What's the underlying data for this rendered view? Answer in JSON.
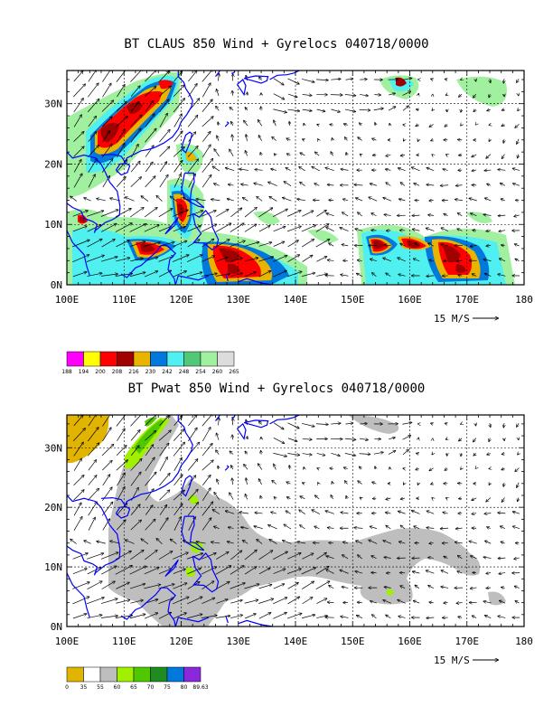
{
  "panels": [
    {
      "title": "BT CLAUS 850 Wind + Gyrelocs 040718/0000",
      "lon_ticks": [
        "100E",
        "110E",
        "120E",
        "130E",
        "140E",
        "150E",
        "160E",
        "170E",
        "180"
      ],
      "lat_ticks": [
        "0N",
        "10N",
        "20N",
        "30N"
      ],
      "scale_label": "15 M/S",
      "legend": {
        "colors": [
          "#ff00ff",
          "#ffff00",
          "#ff0000",
          "#a00000",
          "#e8b400",
          "#0078dc",
          "#50f0f0",
          "#50c878",
          "#a0f0a0",
          "#dcdcdc"
        ],
        "labels": [
          "188",
          "194",
          "200",
          "208",
          "216",
          "230",
          "242",
          "248",
          "254",
          "260",
          "265"
        ]
      }
    },
    {
      "title": "BT Pwat 850 Wind + Gyrelocs 040718/0000",
      "lon_ticks": [
        "100E",
        "110E",
        "120E",
        "130E",
        "140E",
        "150E",
        "160E",
        "170E",
        "180"
      ],
      "lat_ticks": [
        "0N",
        "10N",
        "20N",
        "30N"
      ],
      "scale_label": "15 M/S",
      "legend": {
        "colors": [
          "#e0b400",
          "#ffffff",
          "#bebebe",
          "#a0f000",
          "#50c800",
          "#1e8c1e",
          "#0078dc",
          "#8c28dc"
        ],
        "labels": [
          "0",
          "35",
          "55",
          "60",
          "65",
          "70",
          "75",
          "80",
          "89.63"
        ]
      }
    }
  ],
  "map": {
    "lon_range": [
      100,
      180
    ],
    "lat_range": [
      0,
      35.5
    ],
    "coast_color": "#0000ff",
    "grid_style": "dashed"
  }
}
